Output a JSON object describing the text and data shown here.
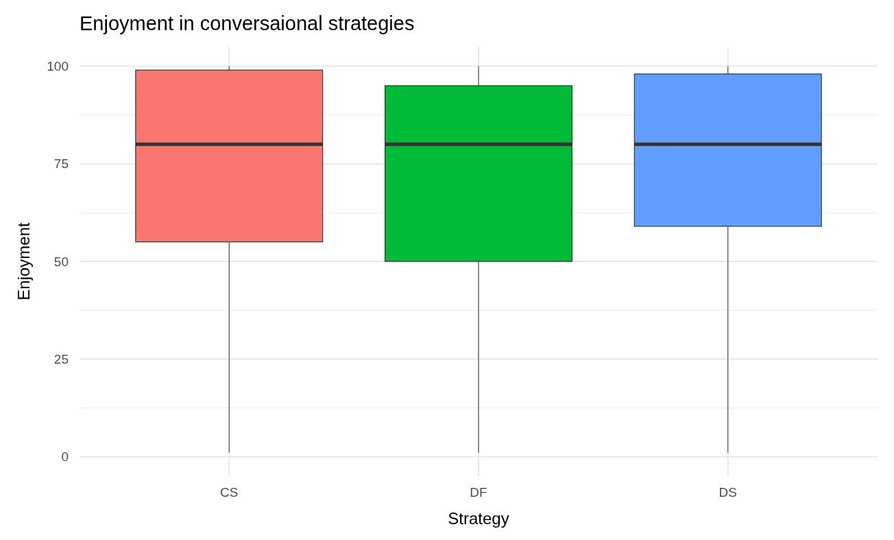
{
  "chart_data": {
    "type": "box",
    "title": "Enjoyment in conversaional strategies",
    "xlabel": "Strategy",
    "ylabel": "Enjoyment",
    "categories": [
      "CS",
      "DF",
      "DS"
    ],
    "colors": [
      "#f8766d",
      "#00ba38",
      "#619cff"
    ],
    "boxes": [
      {
        "low": 1,
        "q1": 55,
        "median": 80,
        "q3": 99,
        "high": 100
      },
      {
        "low": 1,
        "q1": 50,
        "median": 80,
        "q3": 95,
        "high": 100
      },
      {
        "low": 1,
        "q1": 59,
        "median": 80,
        "q3": 98,
        "high": 100
      }
    ],
    "ylim": [
      -5,
      105
    ],
    "yticks": [
      0,
      25,
      50,
      75,
      100
    ],
    "grid": true
  }
}
